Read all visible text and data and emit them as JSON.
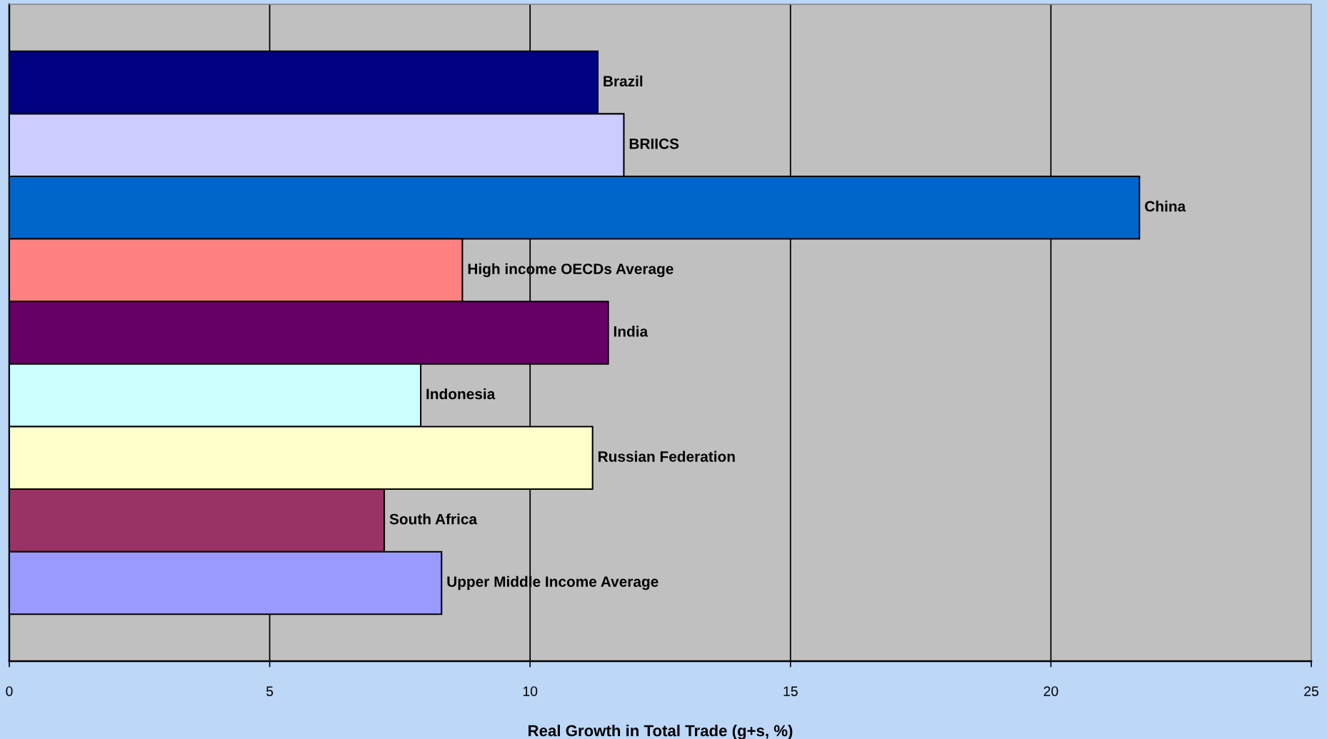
{
  "chart_data": {
    "type": "bar",
    "orientation": "horizontal",
    "xlabel": "Real Growth in Total Trade (g+s, %)",
    "categories": [
      "Brazil",
      "BRIICS",
      "China",
      "High income OECDs Average",
      "India",
      "Indonesia",
      "Russian Federation",
      "South Africa",
      "Upper Middle Income Average"
    ],
    "values": [
      11.3,
      11.8,
      21.7,
      8.7,
      11.5,
      7.9,
      11.2,
      7.2,
      8.3
    ],
    "colors": [
      "#000080",
      "#ccccff",
      "#0066cc",
      "#ff8080",
      "#660066",
      "#ccffff",
      "#ffffcc",
      "#993366",
      "#9999ff"
    ],
    "xlim": [
      0,
      25
    ],
    "xticks": [
      0,
      5,
      10,
      15,
      20,
      25
    ],
    "grid": "x",
    "tick_labels": "x"
  }
}
